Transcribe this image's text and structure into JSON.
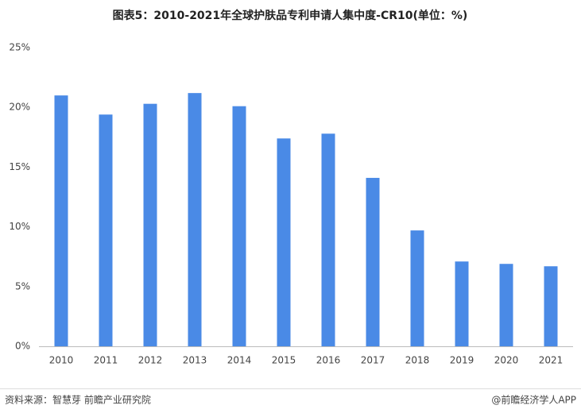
{
  "chart_data": {
    "type": "bar",
    "title": "图表5：2010-2021年全球护肤品专利申请人集中度-CR10(单位：%)",
    "categories": [
      "2010",
      "2011",
      "2012",
      "2013",
      "2014",
      "2015",
      "2016",
      "2017",
      "2018",
      "2019",
      "2020",
      "2021"
    ],
    "values": [
      21.0,
      19.4,
      20.3,
      21.2,
      20.1,
      17.4,
      17.8,
      14.1,
      9.7,
      7.1,
      6.9,
      6.7
    ],
    "color": "#4a8ae6",
    "ylim": [
      0,
      25
    ],
    "yticks": [
      {
        "value": 0,
        "label": "0%"
      },
      {
        "value": 5,
        "label": "5%"
      },
      {
        "value": 10,
        "label": "10%"
      },
      {
        "value": 15,
        "label": "15%"
      },
      {
        "value": 20,
        "label": "20%"
      },
      {
        "value": 25,
        "label": "25%"
      }
    ],
    "grid": false,
    "source": "资料来源：智慧芽 前瞻产业研究院",
    "credit": "@前瞻经济学人APP"
  }
}
